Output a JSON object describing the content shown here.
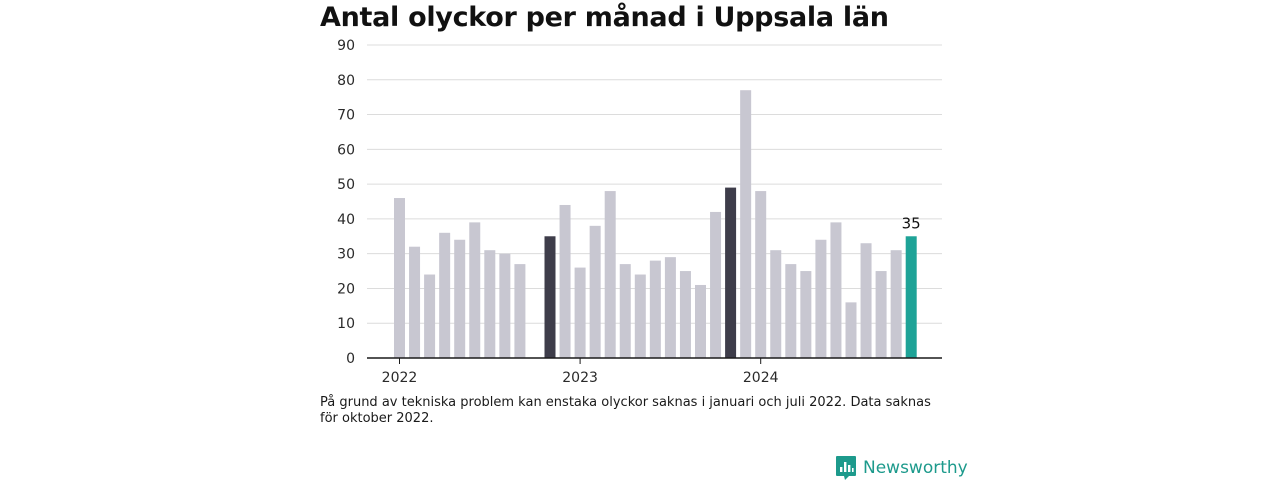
{
  "title": "Antal olyckor per månad i Uppsala län",
  "footnote": "På grund av tekniska problem kan enstaka olyckor saknas i januari och juli 2022. Data saknas för oktober 2022.",
  "brand": {
    "name": "Newsworthy",
    "icon": "bar-chart-logo-icon"
  },
  "colors": {
    "default_bar": "#c8c7d1",
    "highlight_bar": "#3e3d4a",
    "latest_bar": "#1ea397",
    "grid": "#dcdcdc",
    "axis": "#1a1a1a",
    "brand": "#1d9a8c"
  },
  "chart_data": {
    "type": "bar",
    "title": "Antal olyckor per månad i Uppsala län",
    "xlabel": "",
    "ylabel": "",
    "ylim": [
      0,
      90
    ],
    "yticks": [
      0,
      10,
      20,
      30,
      40,
      50,
      60,
      70,
      80,
      90
    ],
    "year_ticks": [
      {
        "label": "2022",
        "at": "2022-01"
      },
      {
        "label": "2023",
        "at": "2023-01"
      },
      {
        "label": "2024",
        "at": "2024-01"
      }
    ],
    "grid": true,
    "bars": [
      {
        "month": "2022-01",
        "value": 46,
        "style": "default"
      },
      {
        "month": "2022-02",
        "value": 32,
        "style": "default"
      },
      {
        "month": "2022-03",
        "value": 24,
        "style": "default"
      },
      {
        "month": "2022-04",
        "value": 36,
        "style": "default"
      },
      {
        "month": "2022-05",
        "value": 34,
        "style": "default"
      },
      {
        "month": "2022-06",
        "value": 39,
        "style": "default"
      },
      {
        "month": "2022-07",
        "value": 31,
        "style": "default"
      },
      {
        "month": "2022-08",
        "value": 30,
        "style": "default"
      },
      {
        "month": "2022-09",
        "value": 27,
        "style": "default"
      },
      {
        "month": "2022-10",
        "value": null,
        "style": "missing"
      },
      {
        "month": "2022-11",
        "value": 35,
        "style": "highlight"
      },
      {
        "month": "2022-12",
        "value": 44,
        "style": "default"
      },
      {
        "month": "2023-01",
        "value": 26,
        "style": "default"
      },
      {
        "month": "2023-02",
        "value": 38,
        "style": "default"
      },
      {
        "month": "2023-03",
        "value": 48,
        "style": "default"
      },
      {
        "month": "2023-04",
        "value": 27,
        "style": "default"
      },
      {
        "month": "2023-05",
        "value": 24,
        "style": "default"
      },
      {
        "month": "2023-06",
        "value": 28,
        "style": "default"
      },
      {
        "month": "2023-07",
        "value": 29,
        "style": "default"
      },
      {
        "month": "2023-08",
        "value": 25,
        "style": "default"
      },
      {
        "month": "2023-09",
        "value": 21,
        "style": "default"
      },
      {
        "month": "2023-10",
        "value": 42,
        "style": "default"
      },
      {
        "month": "2023-11",
        "value": 49,
        "style": "highlight"
      },
      {
        "month": "2023-12",
        "value": 77,
        "style": "default"
      },
      {
        "month": "2024-01",
        "value": 48,
        "style": "default"
      },
      {
        "month": "2024-02",
        "value": 31,
        "style": "default"
      },
      {
        "month": "2024-03",
        "value": 27,
        "style": "default"
      },
      {
        "month": "2024-04",
        "value": 25,
        "style": "default"
      },
      {
        "month": "2024-05",
        "value": 34,
        "style": "default"
      },
      {
        "month": "2024-06",
        "value": 39,
        "style": "default"
      },
      {
        "month": "2024-07",
        "value": 16,
        "style": "default"
      },
      {
        "month": "2024-08",
        "value": 33,
        "style": "default"
      },
      {
        "month": "2024-09",
        "value": 25,
        "style": "default"
      },
      {
        "month": "2024-10",
        "value": 31,
        "style": "default"
      },
      {
        "month": "2024-11",
        "value": 35,
        "style": "latest",
        "label": "35"
      }
    ]
  }
}
